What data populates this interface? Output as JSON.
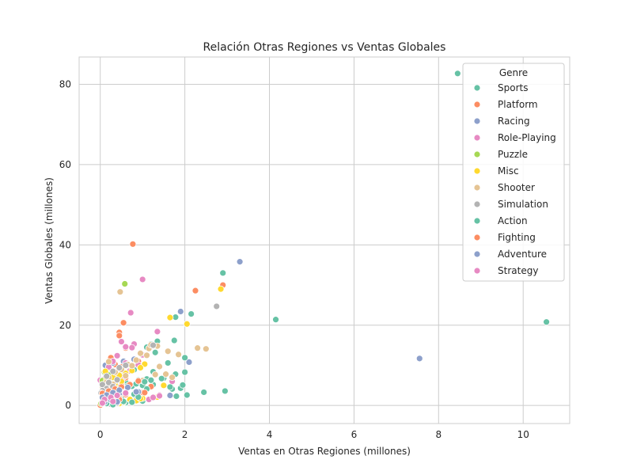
{
  "chart_data": {
    "type": "scatter",
    "title": "Relación Otras Regiones vs Ventas Globales",
    "xlabel": "Ventas en Otras Regiones (millones)",
    "ylabel": "Ventas Globales (millones)",
    "xlim": [
      -0.5,
      11.1
    ],
    "ylim": [
      -4.5,
      86.8
    ],
    "xticks": [
      0,
      2,
      4,
      6,
      8,
      10
    ],
    "yticks": [
      0,
      20,
      40,
      60,
      80
    ],
    "grid": true,
    "legend": {
      "title": "Genre",
      "placement": "top-right"
    },
    "series": [
      {
        "name": "Sports",
        "color": "#66c2a5",
        "points": [
          [
            8.45,
            82.7
          ],
          [
            2.9,
            33.0
          ],
          [
            2.15,
            22.8
          ],
          [
            1.78,
            22.0
          ],
          [
            1.75,
            16.2
          ],
          [
            1.35,
            16.0
          ],
          [
            1.2,
            15.3
          ],
          [
            1.1,
            14.5
          ],
          [
            1.3,
            13.2
          ],
          [
            1.6,
            10.6
          ],
          [
            0.95,
            9.7
          ],
          [
            0.8,
            8.9
          ],
          [
            1.25,
            8.4
          ],
          [
            2.0,
            8.3
          ],
          [
            1.78,
            7.8
          ],
          [
            1.5,
            6.8
          ],
          [
            1.1,
            6.6
          ],
          [
            0.9,
            6.3
          ],
          [
            0.6,
            5.9
          ],
          [
            0.5,
            5.6
          ],
          [
            1.25,
            5.2
          ],
          [
            1.0,
            5.0
          ],
          [
            0.75,
            4.8
          ],
          [
            1.9,
            4.3
          ],
          [
            1.7,
            4.1
          ],
          [
            0.4,
            4.2
          ],
          [
            0.3,
            3.8
          ],
          [
            0.6,
            3.2
          ],
          [
            0.8,
            2.8
          ],
          [
            1.8,
            2.3
          ],
          [
            2.05,
            2.6
          ],
          [
            0.5,
            2.2
          ],
          [
            0.3,
            1.8
          ],
          [
            0.2,
            1.5
          ],
          [
            0.1,
            1.2
          ],
          [
            0.7,
            1.4
          ],
          [
            0.9,
            1.3
          ],
          [
            0.15,
            0.9
          ],
          [
            0.05,
            0.5
          ],
          [
            0.25,
            0.4
          ],
          [
            0.4,
            0.6
          ],
          [
            0.6,
            0.7
          ],
          [
            1.0,
            1.1
          ],
          [
            0.02,
            0.2
          ]
        ]
      },
      {
        "name": "Platform",
        "color": "#fc8d62",
        "points": [
          [
            0.77,
            40.2
          ],
          [
            2.9,
            30.0
          ],
          [
            2.25,
            28.6
          ],
          [
            0.55,
            20.6
          ],
          [
            0.45,
            18.2
          ],
          [
            0.45,
            17.4
          ],
          [
            0.6,
            14.3
          ],
          [
            0.25,
            11.9
          ],
          [
            0.9,
            11.0
          ],
          [
            0.35,
            10.2
          ],
          [
            0.5,
            9.6
          ],
          [
            0.7,
            9.1
          ],
          [
            0.3,
            8.3
          ],
          [
            0.45,
            7.8
          ],
          [
            0.2,
            7.4
          ],
          [
            0.6,
            6.9
          ],
          [
            0.4,
            6.5
          ],
          [
            0.15,
            6.1
          ],
          [
            0.3,
            5.6
          ],
          [
            0.5,
            5.2
          ],
          [
            0.25,
            4.7
          ],
          [
            0.1,
            4.3
          ],
          [
            0.35,
            3.9
          ],
          [
            0.2,
            3.4
          ],
          [
            0.05,
            2.9
          ],
          [
            0.4,
            2.6
          ],
          [
            0.1,
            2.2
          ],
          [
            0.25,
            1.8
          ],
          [
            0.05,
            1.4
          ],
          [
            0.15,
            1.0
          ],
          [
            0.0,
            0.1
          ],
          [
            0.3,
            0.5
          ],
          [
            1.0,
            3.2
          ],
          [
            1.2,
            4.7
          ]
        ]
      },
      {
        "name": "Racing",
        "color": "#8da0cb",
        "points": [
          [
            3.3,
            35.8
          ],
          [
            7.55,
            11.7
          ],
          [
            1.9,
            23.4
          ],
          [
            2.1,
            10.8
          ],
          [
            0.8,
            11.5
          ],
          [
            0.55,
            11.0
          ],
          [
            0.3,
            10.6
          ],
          [
            0.7,
            9.8
          ],
          [
            0.45,
            9.2
          ],
          [
            0.25,
            8.8
          ],
          [
            0.55,
            8.0
          ],
          [
            0.35,
            7.5
          ],
          [
            0.15,
            7.0
          ],
          [
            0.5,
            6.5
          ],
          [
            0.3,
            6.0
          ],
          [
            0.1,
            5.5
          ],
          [
            0.4,
            5.0
          ],
          [
            0.2,
            4.6
          ],
          [
            0.05,
            4.1
          ],
          [
            0.3,
            3.6
          ],
          [
            0.15,
            3.1
          ],
          [
            0.45,
            2.7
          ],
          [
            0.1,
            2.2
          ],
          [
            0.25,
            1.7
          ],
          [
            0.05,
            1.2
          ],
          [
            0.15,
            0.7
          ],
          [
            0.9,
            3.4
          ],
          [
            0.12,
            10.0
          ],
          [
            1.65,
            2.5
          ],
          [
            0.85,
            1.5
          ]
        ]
      },
      {
        "name": "Role-Playing",
        "color": "#e78ac3",
        "points": [
          [
            1.0,
            31.4
          ],
          [
            0.72,
            23.1
          ],
          [
            1.35,
            18.4
          ],
          [
            0.5,
            15.9
          ],
          [
            0.8,
            15.3
          ],
          [
            0.75,
            14.4
          ],
          [
            0.6,
            14.6
          ],
          [
            0.4,
            12.4
          ],
          [
            1.0,
            12.6
          ],
          [
            0.3,
            11.0
          ],
          [
            0.6,
            10.6
          ],
          [
            0.9,
            10.1
          ],
          [
            0.2,
            9.6
          ],
          [
            0.45,
            9.1
          ],
          [
            0.7,
            8.6
          ],
          [
            0.15,
            8.1
          ],
          [
            0.35,
            7.6
          ],
          [
            0.55,
            7.1
          ],
          [
            0.1,
            6.6
          ],
          [
            0.3,
            6.1
          ],
          [
            0.05,
            5.6
          ],
          [
            0.25,
            5.1
          ],
          [
            0.45,
            4.6
          ],
          [
            0.15,
            4.1
          ],
          [
            0.35,
            3.6
          ],
          [
            0.05,
            3.1
          ],
          [
            0.2,
            2.6
          ],
          [
            0.1,
            2.1
          ],
          [
            0.3,
            1.6
          ],
          [
            0.05,
            1.1
          ],
          [
            1.7,
            6.0
          ],
          [
            1.4,
            2.6
          ],
          [
            1.15,
            1.5
          ],
          [
            0.0,
            6.3
          ]
        ]
      },
      {
        "name": "Puzzle",
        "color": "#a6d854",
        "points": [
          [
            0.58,
            30.3
          ],
          [
            0.1,
            8.3
          ],
          [
            0.2,
            7.6
          ],
          [
            0.05,
            6.2
          ],
          [
            0.3,
            5.8
          ],
          [
            0.15,
            5.0
          ],
          [
            0.4,
            4.4
          ],
          [
            0.1,
            3.8
          ],
          [
            0.25,
            3.2
          ],
          [
            0.05,
            2.6
          ],
          [
            0.15,
            2.0
          ],
          [
            0.35,
            1.5
          ],
          [
            0.1,
            1.0
          ],
          [
            0.02,
            0.5
          ],
          [
            0.45,
            0.8
          ]
        ]
      },
      {
        "name": "Misc",
        "color": "#ffd92f",
        "points": [
          [
            2.85,
            29.0
          ],
          [
            2.05,
            20.3
          ],
          [
            1.65,
            21.9
          ],
          [
            1.05,
            10.3
          ],
          [
            0.95,
            9.4
          ],
          [
            0.75,
            8.7
          ],
          [
            0.6,
            8.0
          ],
          [
            0.45,
            7.5
          ],
          [
            0.3,
            7.0
          ],
          [
            0.15,
            6.5
          ],
          [
            0.5,
            6.0
          ],
          [
            0.35,
            5.5
          ],
          [
            0.2,
            5.0
          ],
          [
            0.05,
            4.5
          ],
          [
            0.4,
            4.0
          ],
          [
            0.25,
            3.5
          ],
          [
            0.1,
            3.0
          ],
          [
            0.3,
            2.5
          ],
          [
            0.15,
            2.0
          ],
          [
            1.5,
            5.0
          ],
          [
            1.35,
            2.1
          ],
          [
            1.0,
            1.8
          ],
          [
            0.85,
            1.2
          ],
          [
            0.55,
            0.8
          ],
          [
            0.45,
            0.5
          ],
          [
            0.3,
            0.3
          ],
          [
            0.7,
            1.5
          ],
          [
            0.95,
            1.7
          ],
          [
            0.12,
            8.5
          ]
        ]
      },
      {
        "name": "Shooter",
        "color": "#e5c494",
        "points": [
          [
            0.47,
            28.3
          ],
          [
            2.3,
            14.3
          ],
          [
            2.5,
            14.1
          ],
          [
            1.6,
            13.5
          ],
          [
            1.85,
            12.7
          ],
          [
            1.35,
            14.8
          ],
          [
            1.15,
            14.2
          ],
          [
            1.2,
            15.1
          ],
          [
            0.95,
            13.0
          ],
          [
            1.4,
            9.7
          ],
          [
            1.55,
            7.8
          ],
          [
            1.7,
            7.0
          ],
          [
            1.3,
            7.7
          ],
          [
            1.1,
            12.5
          ],
          [
            0.85,
            11.3
          ],
          [
            0.65,
            10.2
          ],
          [
            0.75,
            9.9
          ],
          [
            0.5,
            9.0
          ],
          [
            0.35,
            8.3
          ],
          [
            0.6,
            7.4
          ],
          [
            0.2,
            6.9
          ],
          [
            0.4,
            6.3
          ],
          [
            0.15,
            5.8
          ],
          [
            0.3,
            5.3
          ],
          [
            0.05,
            4.8
          ],
          [
            0.25,
            4.3
          ],
          [
            0.1,
            3.8
          ],
          [
            0.35,
            3.3
          ],
          [
            0.2,
            2.8
          ],
          [
            0.05,
            2.3
          ],
          [
            0.45,
            1.9
          ],
          [
            1.0,
            6.2
          ],
          [
            0.2,
            10.9
          ]
        ]
      },
      {
        "name": "Simulation",
        "color": "#b3b3b3",
        "points": [
          [
            2.75,
            24.7
          ],
          [
            1.25,
            15.0
          ],
          [
            0.6,
            10.0
          ],
          [
            0.45,
            9.4
          ],
          [
            0.3,
            8.5
          ],
          [
            0.15,
            7.3
          ],
          [
            0.4,
            6.4
          ],
          [
            0.2,
            5.7
          ],
          [
            0.05,
            5.2
          ],
          [
            0.3,
            4.7
          ],
          [
            0.15,
            4.2
          ],
          [
            0.05,
            3.7
          ],
          [
            0.25,
            3.2
          ],
          [
            0.1,
            2.7
          ],
          [
            0.35,
            2.2
          ],
          [
            0.2,
            1.7
          ],
          [
            0.1,
            1.2
          ],
          [
            0.4,
            0.6
          ],
          [
            0.25,
            0.3
          ],
          [
            0.02,
            3.1
          ],
          [
            0.05,
            2.0
          ]
        ]
      },
      {
        "name": "Action",
        "color": "#66c2a5",
        "points": [
          [
            10.55,
            20.8
          ],
          [
            4.15,
            21.4
          ],
          [
            2.95,
            3.6
          ],
          [
            2.45,
            3.3
          ],
          [
            2.0,
            11.9
          ],
          [
            1.95,
            5.1
          ],
          [
            1.65,
            4.6
          ],
          [
            1.45,
            6.7
          ],
          [
            1.2,
            6.3
          ],
          [
            1.05,
            5.9
          ],
          [
            0.85,
            5.4
          ],
          [
            0.65,
            4.9
          ],
          [
            0.5,
            4.4
          ],
          [
            0.35,
            3.9
          ],
          [
            0.2,
            3.4
          ],
          [
            0.05,
            2.9
          ],
          [
            0.4,
            2.4
          ],
          [
            0.25,
            1.9
          ],
          [
            0.1,
            1.4
          ],
          [
            0.55,
            1.0
          ],
          [
            0.75,
            0.8
          ],
          [
            0.9,
            2.1
          ],
          [
            1.1,
            4.1
          ],
          [
            0.15,
            0.5
          ],
          [
            0.3,
            0.2
          ]
        ]
      },
      {
        "name": "Fighting",
        "color": "#fc8d62",
        "points": [
          [
            1.05,
            3.2
          ],
          [
            0.9,
            6.1
          ],
          [
            0.7,
            5.2
          ],
          [
            0.5,
            4.6
          ],
          [
            0.35,
            4.1
          ],
          [
            0.2,
            3.6
          ],
          [
            0.05,
            3.0
          ],
          [
            0.3,
            2.5
          ],
          [
            0.15,
            2.0
          ],
          [
            0.45,
            1.5
          ],
          [
            0.1,
            1.0
          ],
          [
            0.6,
            2.7
          ]
        ]
      },
      {
        "name": "Adventure",
        "color": "#8da0cb",
        "points": [
          [
            0.85,
            3.4
          ],
          [
            0.65,
            4.5
          ],
          [
            0.45,
            3.8
          ],
          [
            0.3,
            3.2
          ],
          [
            0.15,
            2.6
          ],
          [
            0.05,
            2.0
          ],
          [
            0.25,
            1.4
          ],
          [
            0.1,
            0.8
          ],
          [
            0.4,
            0.9
          ]
        ]
      },
      {
        "name": "Strategy",
        "color": "#e78ac3",
        "points": [
          [
            1.4,
            2.4
          ],
          [
            1.25,
            2.0
          ],
          [
            0.6,
            3.1
          ],
          [
            0.4,
            2.5
          ],
          [
            0.25,
            2.0
          ],
          [
            0.1,
            1.5
          ],
          [
            0.3,
            1.0
          ],
          [
            0.05,
            0.6
          ]
        ]
      }
    ]
  }
}
